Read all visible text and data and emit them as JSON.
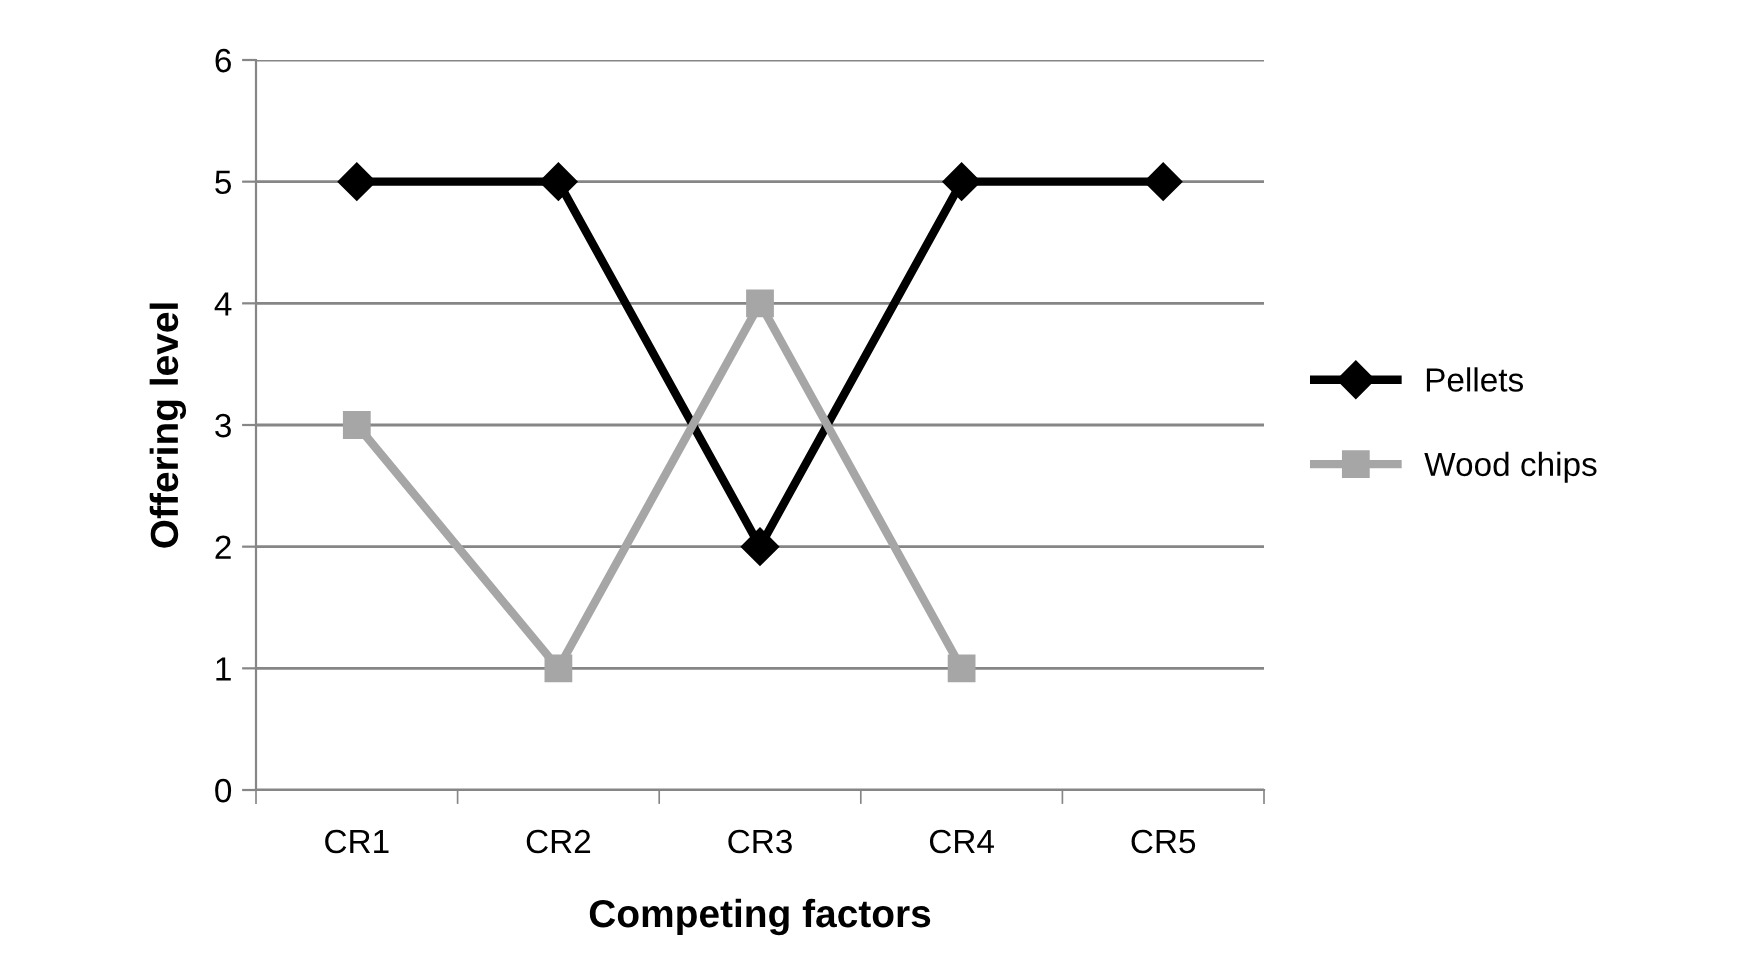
{
  "chart_data": {
    "type": "line",
    "xlabel": "Competing factors",
    "ylabel": "Offering level",
    "categories": [
      "CR1",
      "CR2",
      "CR3",
      "CR4",
      "CR5"
    ],
    "series": [
      {
        "name": "Pellets",
        "color": "#000000",
        "marker": "diamond",
        "values": [
          5,
          5,
          2,
          5,
          5
        ]
      },
      {
        "name": "Wood chips",
        "color": "#a6a6a6",
        "marker": "square",
        "values": [
          3,
          1,
          4,
          1,
          null
        ]
      }
    ],
    "ylim": [
      0,
      6
    ],
    "yticks": [
      0,
      1,
      2,
      3,
      4,
      5,
      6
    ],
    "grid": "y",
    "legend": "right"
  }
}
